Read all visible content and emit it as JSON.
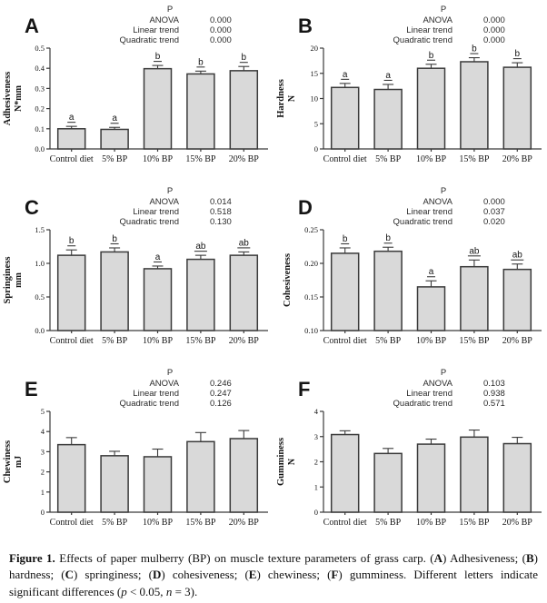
{
  "style": {
    "bar_fill": "#d9d9d9",
    "line_color": "#3a3a3a",
    "background": "#ffffff"
  },
  "figure": {
    "caption_segments": [
      {
        "text": "Figure 1.",
        "bold": true
      },
      {
        "text": " Effects of paper mulberry (BP) on muscle texture parameters of grass carp. ("
      },
      {
        "text": "A",
        "bold": true
      },
      {
        "text": ") Adhesiveness; ("
      },
      {
        "text": "B",
        "bold": true
      },
      {
        "text": ") hardness; ("
      },
      {
        "text": "C",
        "bold": true
      },
      {
        "text": ") springiness; ("
      },
      {
        "text": "D",
        "bold": true
      },
      {
        "text": ") cohesiveness; ("
      },
      {
        "text": "E",
        "bold": true
      },
      {
        "text": ") chewiness; ("
      },
      {
        "text": "F",
        "bold": true
      },
      {
        "text": ") gumminess. Different letters indicate significant differences ("
      },
      {
        "text": "p",
        "italic": true
      },
      {
        "text": " < 0.05, "
      },
      {
        "text": "n",
        "italic": true
      },
      {
        "text": " = 3)."
      }
    ]
  },
  "chart_data": [
    {
      "type": "bar",
      "panel": "A",
      "ylabel": "Adhesiveness",
      "yunit": "N*mm",
      "ylim": [
        0,
        0.5
      ],
      "yticks": [
        0.0,
        0.1,
        0.2,
        0.3,
        0.4,
        0.5
      ],
      "ytick_labels": [
        "0.0",
        "0.1",
        "0.2",
        "0.3",
        "0.4",
        "0.5"
      ],
      "categories": [
        "Control diet",
        "5% BP",
        "10% BP",
        "15% BP",
        "20% BP"
      ],
      "values": [
        0.1,
        0.097,
        0.398,
        0.372,
        0.388
      ],
      "errors": [
        0.012,
        0.01,
        0.016,
        0.014,
        0.021
      ],
      "letters": [
        "a",
        "a",
        "b",
        "b",
        "b"
      ],
      "stats": {
        "header": "P",
        "rows": [
          [
            "ANOVA",
            "0.000"
          ],
          [
            "Linear trend",
            "0.000"
          ],
          [
            "Quadratic trend",
            "0.000"
          ]
        ]
      }
    },
    {
      "type": "bar",
      "panel": "B",
      "ylabel": "Hardness",
      "yunit": "N",
      "ylim": [
        0,
        20
      ],
      "yticks": [
        0,
        5,
        10,
        15,
        20
      ],
      "ytick_labels": [
        "0",
        "5",
        "10",
        "15",
        "20"
      ],
      "categories": [
        "Control diet",
        "5% BP",
        "10% BP",
        "15% BP",
        "20% BP"
      ],
      "values": [
        12.2,
        11.8,
        16.0,
        17.3,
        16.2
      ],
      "errors": [
        0.8,
        1.0,
        0.8,
        0.8,
        0.9
      ],
      "letters": [
        "a",
        "a",
        "b",
        "b",
        "b"
      ],
      "stats": {
        "header": "P",
        "rows": [
          [
            "ANOVA",
            "0.000"
          ],
          [
            "Linear trend",
            "0.000"
          ],
          [
            "Quadratic trend",
            "0.000"
          ]
        ]
      }
    },
    {
      "type": "bar",
      "panel": "C",
      "ylabel": "Springiness",
      "yunit": "mm",
      "ylim": [
        0,
        1.5
      ],
      "yticks": [
        0.0,
        0.5,
        1.0,
        1.5
      ],
      "ytick_labels": [
        "0.0",
        "0.5",
        "1.0",
        "1.5"
      ],
      "categories": [
        "Control diet",
        "5% BP",
        "10% BP",
        "15% BP",
        "20% BP"
      ],
      "values": [
        1.12,
        1.17,
        0.92,
        1.06,
        1.12
      ],
      "errors": [
        0.08,
        0.06,
        0.04,
        0.06,
        0.05
      ],
      "letters": [
        "b",
        "b",
        "a",
        "ab",
        "ab"
      ],
      "stats": {
        "header": "P",
        "rows": [
          [
            "ANOVA",
            "0.014"
          ],
          [
            "Linear trend",
            "0.518"
          ],
          [
            "Quadratic trend",
            "0.130"
          ]
        ]
      }
    },
    {
      "type": "bar",
      "panel": "D",
      "ylabel": "Cohesiveness",
      "yunit": "",
      "ylim": [
        0.1,
        0.25
      ],
      "yticks": [
        0.1,
        0.15,
        0.2,
        0.25
      ],
      "ytick_labels": [
        "0.10",
        "0.15",
        "0.20",
        "0.25"
      ],
      "categories": [
        "Control diet",
        "5% BP",
        "10% BP",
        "15% BP",
        "20% BP"
      ],
      "values": [
        0.215,
        0.218,
        0.165,
        0.195,
        0.191
      ],
      "errors": [
        0.008,
        0.006,
        0.009,
        0.01,
        0.008
      ],
      "letters": [
        "b",
        "b",
        "a",
        "ab",
        "ab"
      ],
      "stats": {
        "header": "P",
        "rows": [
          [
            "ANOVA",
            "0.000"
          ],
          [
            "Linear trend",
            "0.037"
          ],
          [
            "Quadratic trend",
            "0.020"
          ]
        ]
      }
    },
    {
      "type": "bar",
      "panel": "E",
      "ylabel": "Chewiness",
      "yunit": "mJ",
      "ylim": [
        0,
        5
      ],
      "yticks": [
        0,
        1,
        2,
        3,
        4,
        5
      ],
      "ytick_labels": [
        "0",
        "1",
        "2",
        "3",
        "4",
        "5"
      ],
      "categories": [
        "Control diet",
        "5% BP",
        "10% BP",
        "15% BP",
        "20% BP"
      ],
      "values": [
        3.35,
        2.8,
        2.75,
        3.5,
        3.65
      ],
      "errors": [
        0.35,
        0.22,
        0.38,
        0.45,
        0.4
      ],
      "letters": [
        "",
        "",
        "",
        "",
        ""
      ],
      "stats": {
        "header": "P",
        "rows": [
          [
            "ANOVA",
            "0.246"
          ],
          [
            "Linear trend",
            "0.247"
          ],
          [
            "Quadratic trend",
            "0.126"
          ]
        ]
      }
    },
    {
      "type": "bar",
      "panel": "F",
      "ylabel": "Gumminess",
      "yunit": "N",
      "ylim": [
        0,
        4
      ],
      "yticks": [
        0,
        1,
        2,
        3,
        4
      ],
      "ytick_labels": [
        "0",
        "1",
        "2",
        "3",
        "4"
      ],
      "categories": [
        "Control diet",
        "5% BP",
        "10% BP",
        "15% BP",
        "20% BP"
      ],
      "values": [
        3.08,
        2.33,
        2.7,
        2.98,
        2.72
      ],
      "errors": [
        0.15,
        0.2,
        0.2,
        0.28,
        0.25
      ],
      "letters": [
        "",
        "",
        "",
        "",
        ""
      ],
      "stats": {
        "header": "P",
        "rows": [
          [
            "ANOVA",
            "0.103"
          ],
          [
            "Linear trend",
            "0.938"
          ],
          [
            "Quadratic trend",
            "0.571"
          ]
        ]
      }
    }
  ]
}
